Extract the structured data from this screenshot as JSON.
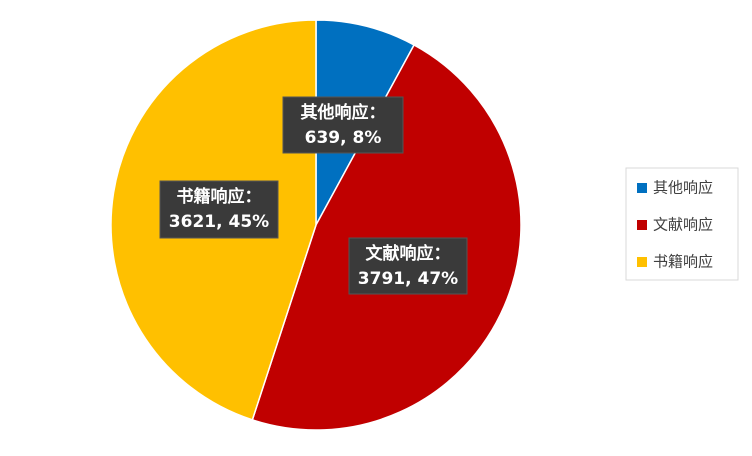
{
  "chart_data": {
    "type": "pie",
    "categories": [
      "其他响应",
      "文献响应",
      "书籍响应"
    ],
    "values": [
      639,
      3791,
      3621
    ],
    "colors": [
      "#0070c0",
      "#c00000",
      "#ffc000"
    ],
    "label_names": [
      "其他响应：",
      "文献响应：",
      "书籍响应："
    ],
    "value_labels": [
      "639, 8%",
      "3791, 47%",
      "3621, 45%"
    ],
    "legend": "right"
  }
}
